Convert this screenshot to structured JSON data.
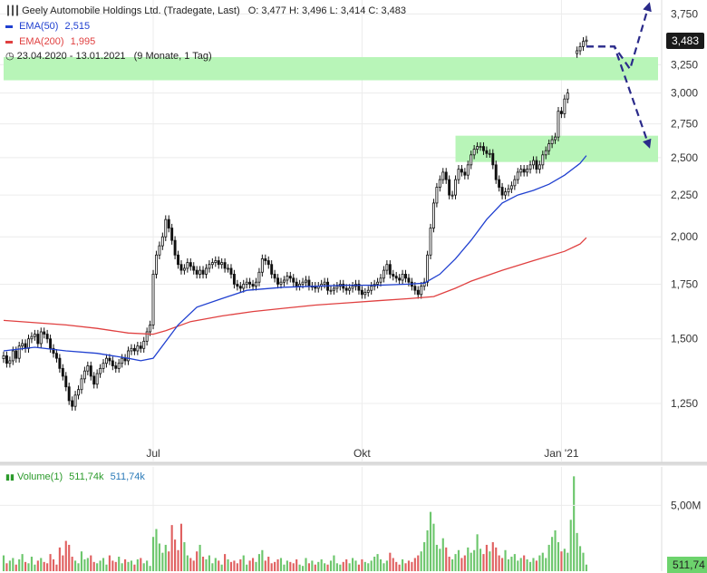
{
  "header": {
    "title": "Geely Automobile Holdings Ltd. (Tradegate, Last)",
    "ohlc": "O: 3,477  H: 3,496  L: 3,414  C: 3,483",
    "ema50_label": "EMA(50)",
    "ema50_value": "2,515",
    "ema200_label": "EMA(200)",
    "ema200_value": "1,995",
    "range_label": "23.04.2020 - 13.01.2021",
    "range_span": "(9 Monate, 1 Tag)"
  },
  "last_price_badge": "3,483",
  "volume_panel": {
    "label": "Volume(1)",
    "value_green": "511,74k",
    "value_blue": "511,74k",
    "badge": "511,74",
    "axis_label": "5,00M",
    "max_value_M": 7.5
  },
  "colors": {
    "ema50": "#2040d0",
    "ema200": "#e04040",
    "zone": "#b8f5b8",
    "arrow": "#2a2a8a",
    "vol_up": "#6cc66c",
    "vol_down": "#e06060"
  },
  "chart_data": {
    "type": "candlestick",
    "title": "Geely Automobile Holdings Ltd. (Tradegate, Last)",
    "y_scale": "log",
    "ylim": [
      1120,
      3900
    ],
    "y_ticks": [
      {
        "v": 3750,
        "label": "3,750"
      },
      {
        "v": 3250,
        "label": "3,250"
      },
      {
        "v": 3000,
        "label": "3,000"
      },
      {
        "v": 2750,
        "label": "2,750"
      },
      {
        "v": 2500,
        "label": "2,500"
      },
      {
        "v": 2250,
        "label": "2,250"
      },
      {
        "v": 2000,
        "label": "2,000"
      },
      {
        "v": 1750,
        "label": "1,750"
      },
      {
        "v": 1500,
        "label": "1,500"
      },
      {
        "v": 1250,
        "label": "1,250"
      }
    ],
    "x_ticks": [
      {
        "i": 48,
        "label": "Jul"
      },
      {
        "i": 115,
        "label": "Okt"
      },
      {
        "i": 179,
        "label": "Jan '21"
      }
    ],
    "n_slots": 210,
    "close": [
      1430,
      1400,
      1410,
      1450,
      1420,
      1470,
      1480,
      1460,
      1500,
      1510,
      1520,
      1480,
      1530,
      1520,
      1500,
      1460,
      1440,
      1420,
      1380,
      1350,
      1310,
      1260,
      1240,
      1280,
      1300,
      1340,
      1370,
      1390,
      1350,
      1320,
      1360,
      1380,
      1400,
      1420,
      1410,
      1390,
      1380,
      1400,
      1420,
      1410,
      1450,
      1460,
      1450,
      1470,
      1460,
      1490,
      1530,
      1560,
      1800,
      1900,
      1950,
      2000,
      2100,
      2050,
      1980,
      1900,
      1850,
      1820,
      1830,
      1860,
      1840,
      1820,
      1800,
      1820,
      1800,
      1830,
      1850,
      1860,
      1870,
      1850,
      1860,
      1830,
      1830,
      1800,
      1750,
      1740,
      1730,
      1750,
      1760,
      1750,
      1740,
      1760,
      1810,
      1880,
      1870,
      1850,
      1800,
      1780,
      1750,
      1760,
      1770,
      1790,
      1780,
      1760,
      1740,
      1750,
      1760,
      1770,
      1740,
      1740,
      1730,
      1740,
      1750,
      1760,
      1720,
      1720,
      1730,
      1740,
      1750,
      1730,
      1720,
      1730,
      1740,
      1750,
      1720,
      1700,
      1710,
      1720,
      1740,
      1750,
      1760,
      1780,
      1820,
      1850,
      1800,
      1790,
      1780,
      1770,
      1800,
      1780,
      1760,
      1740,
      1720,
      1700,
      1740,
      1760,
      1900,
      2050,
      2200,
      2300,
      2350,
      2400,
      2350,
      2250,
      2250,
      2350,
      2420,
      2400,
      2380,
      2450,
      2520,
      2560,
      2580,
      2580,
      2550,
      2530,
      2530,
      2450,
      2350,
      2300,
      2250,
      2270,
      2290,
      2310,
      2350,
      2400,
      2420,
      2400,
      2420,
      2450,
      2480,
      2420,
      2450,
      2520,
      2550,
      2600,
      2630,
      2650,
      2850,
      2830,
      2950,
      3000,
      null,
      null,
      3380,
      3420,
      3470,
      3483
    ],
    "open_offset_pct": 0.8,
    "ema50": [
      [
        0,
        1450
      ],
      [
        10,
        1465
      ],
      [
        20,
        1450
      ],
      [
        30,
        1440
      ],
      [
        40,
        1420
      ],
      [
        44,
        1410
      ],
      [
        48,
        1420
      ],
      [
        56,
        1560
      ],
      [
        62,
        1640
      ],
      [
        70,
        1680
      ],
      [
        78,
        1720
      ],
      [
        90,
        1735
      ],
      [
        100,
        1740
      ],
      [
        110,
        1745
      ],
      [
        120,
        1745
      ],
      [
        130,
        1750
      ],
      [
        135,
        1755
      ],
      [
        140,
        1800
      ],
      [
        145,
        1880
      ],
      [
        150,
        1980
      ],
      [
        155,
        2100
      ],
      [
        160,
        2200
      ],
      [
        165,
        2250
      ],
      [
        170,
        2280
      ],
      [
        175,
        2320
      ],
      [
        180,
        2380
      ],
      [
        185,
        2460
      ],
      [
        187,
        2515
      ]
    ],
    "ema200": [
      [
        0,
        1580
      ],
      [
        10,
        1570
      ],
      [
        20,
        1560
      ],
      [
        30,
        1545
      ],
      [
        40,
        1525
      ],
      [
        48,
        1520
      ],
      [
        52,
        1535
      ],
      [
        60,
        1575
      ],
      [
        70,
        1600
      ],
      [
        80,
        1620
      ],
      [
        90,
        1635
      ],
      [
        100,
        1650
      ],
      [
        110,
        1660
      ],
      [
        120,
        1670
      ],
      [
        130,
        1680
      ],
      [
        138,
        1690
      ],
      [
        145,
        1730
      ],
      [
        150,
        1765
      ],
      [
        160,
        1820
      ],
      [
        170,
        1870
      ],
      [
        180,
        1920
      ],
      [
        185,
        1960
      ],
      [
        187,
        1995
      ]
    ],
    "zones": [
      {
        "from_i": 0,
        "to_i": 210,
        "y_low": 3110,
        "y_high": 3320
      },
      {
        "from_i": 145,
        "to_i": 210,
        "y_low": 2470,
        "y_high": 2660
      }
    ],
    "projections": [
      [
        [
          187,
          3420
        ],
        [
          196,
          3420
        ],
        [
          201,
          3210
        ],
        [
          207,
          3840
        ]
      ],
      [
        [
          187,
          3420
        ],
        [
          196,
          3420
        ],
        [
          207,
          2590
        ]
      ]
    ],
    "volume": [
      1.2,
      0.6,
      0.8,
      1.0,
      0.5,
      0.9,
      1.3,
      0.7,
      0.6,
      1.1,
      0.5,
      0.8,
      1.0,
      0.7,
      0.6,
      1.3,
      0.9,
      0.5,
      1.8,
      1.2,
      2.3,
      2.0,
      1.1,
      0.8,
      0.6,
      1.5,
      0.9,
      1.0,
      1.2,
      0.7,
      0.6,
      0.8,
      1.0,
      0.5,
      1.2,
      0.8,
      0.7,
      1.1,
      0.6,
      0.9,
      0.7,
      0.8,
      0.5,
      0.9,
      1.0,
      0.6,
      0.8,
      0.4,
      2.6,
      3.2,
      2.1,
      1.4,
      2.0,
      1.5,
      3.5,
      2.4,
      1.6,
      3.6,
      2.2,
      1.2,
      1.0,
      0.8,
      1.5,
      2.0,
      1.1,
      0.9,
      1.2,
      0.6,
      1.0,
      0.8,
      0.5,
      1.3,
      0.9,
      0.7,
      0.8,
      0.6,
      0.9,
      1.2,
      0.5,
      0.8,
      1.0,
      0.7,
      1.3,
      1.6,
      0.8,
      1.1,
      0.6,
      0.7,
      0.9,
      1.0,
      0.5,
      0.8,
      0.7,
      0.6,
      0.9,
      0.5,
      0.4,
      1.0,
      0.6,
      0.8,
      0.5,
      0.7,
      0.9,
      0.6,
      0.5,
      0.8,
      1.2,
      0.6,
      0.5,
      0.7,
      0.9,
      0.6,
      1.0,
      0.8,
      0.5,
      0.9,
      0.7,
      0.6,
      0.8,
      1.1,
      1.3,
      0.9,
      0.6,
      0.8,
      1.4,
      1.0,
      0.7,
      0.5,
      0.9,
      0.6,
      0.8,
      0.7,
      1.0,
      1.2,
      1.5,
      2.2,
      3.1,
      4.5,
      3.6,
      2.0,
      1.7,
      2.5,
      1.8,
      1.1,
      0.9,
      1.3,
      1.6,
      1.0,
      1.2,
      1.8,
      1.4,
      1.6,
      2.8,
      1.7,
      1.3,
      2.0,
      1.5,
      2.2,
      1.8,
      1.2,
      1.0,
      1.6,
      0.9,
      1.1,
      1.3,
      0.8,
      1.0,
      1.2,
      0.9,
      0.7,
      1.0,
      0.8,
      1.2,
      1.4,
      1.0,
      2.0,
      2.6,
      3.1,
      2.2,
      1.5,
      1.7,
      1.4,
      3.9,
      7.2,
      2.9,
      1.9,
      1.4,
      0.5
    ]
  }
}
